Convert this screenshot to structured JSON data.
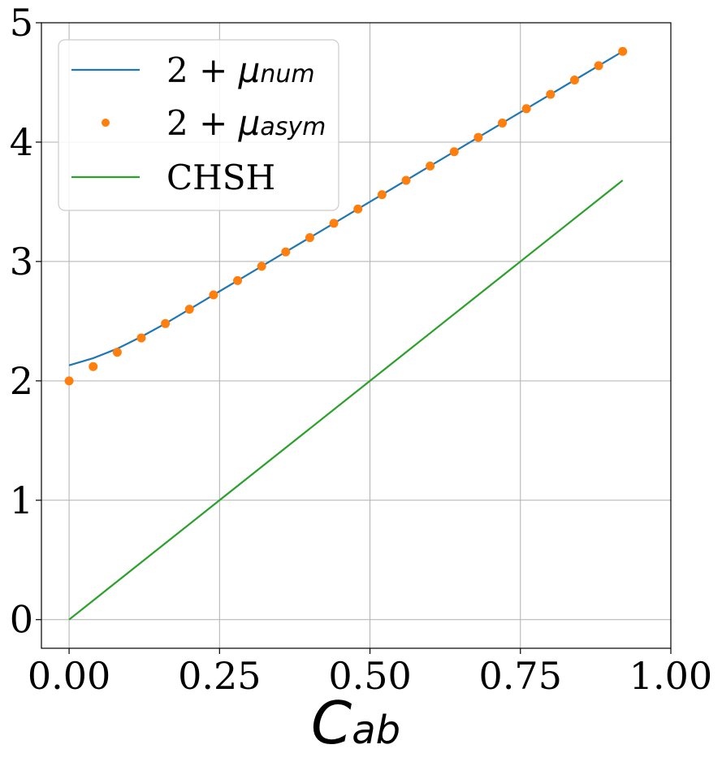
{
  "chart_data": {
    "type": "line",
    "title": "",
    "xlabel_main": "C",
    "xlabel_sub": "ab",
    "ylabel": "",
    "xlim": [
      -0.046,
      1.0
    ],
    "ylim": [
      -0.24,
      5.0
    ],
    "grid": true,
    "legend_position": "top-left",
    "x_ticks": [
      0.0,
      0.25,
      0.5,
      0.75,
      1.0
    ],
    "x_tick_labels": [
      "0.00",
      "0.25",
      "0.50",
      "0.75",
      "1.00"
    ],
    "y_ticks": [
      0,
      1,
      2,
      3,
      4,
      5
    ],
    "y_tick_labels": [
      "0",
      "1",
      "2",
      "3",
      "4",
      "5"
    ],
    "series": [
      {
        "name_base": "2 + ",
        "name_symbol": "μ",
        "name_sub": "num",
        "kind": "line",
        "color": "#1f77b4",
        "x": [
          0.0,
          0.04,
          0.08,
          0.12,
          0.16,
          0.2,
          0.24,
          0.28,
          0.32,
          0.36,
          0.4,
          0.44,
          0.48,
          0.52,
          0.56,
          0.6,
          0.64,
          0.68,
          0.72,
          0.76,
          0.8,
          0.84,
          0.88,
          0.92
        ],
        "y": [
          2.13,
          2.19,
          2.27,
          2.37,
          2.48,
          2.6,
          2.72,
          2.84,
          2.96,
          3.08,
          3.2,
          3.32,
          3.44,
          3.56,
          3.68,
          3.8,
          3.92,
          4.04,
          4.16,
          4.28,
          4.4,
          4.52,
          4.64,
          4.76
        ]
      },
      {
        "name_base": "2 + ",
        "name_symbol": "μ",
        "name_sub": "asym",
        "kind": "scatter",
        "color": "#ff7f0e",
        "x": [
          0.0,
          0.04,
          0.08,
          0.12,
          0.16,
          0.2,
          0.24,
          0.28,
          0.32,
          0.36,
          0.4,
          0.44,
          0.48,
          0.52,
          0.56,
          0.6,
          0.64,
          0.68,
          0.72,
          0.76,
          0.8,
          0.84,
          0.88,
          0.92
        ],
        "y": [
          2.0,
          2.12,
          2.24,
          2.36,
          2.48,
          2.6,
          2.72,
          2.84,
          2.96,
          3.08,
          3.2,
          3.32,
          3.44,
          3.56,
          3.68,
          3.8,
          3.92,
          4.04,
          4.16,
          4.28,
          4.4,
          4.52,
          4.64,
          4.76
        ]
      },
      {
        "name_base": "CHSH",
        "name_symbol": "",
        "name_sub": "",
        "kind": "line",
        "color": "#2ca02c",
        "x": [
          0.0,
          0.92
        ],
        "y": [
          0.0,
          3.68
        ]
      }
    ]
  }
}
